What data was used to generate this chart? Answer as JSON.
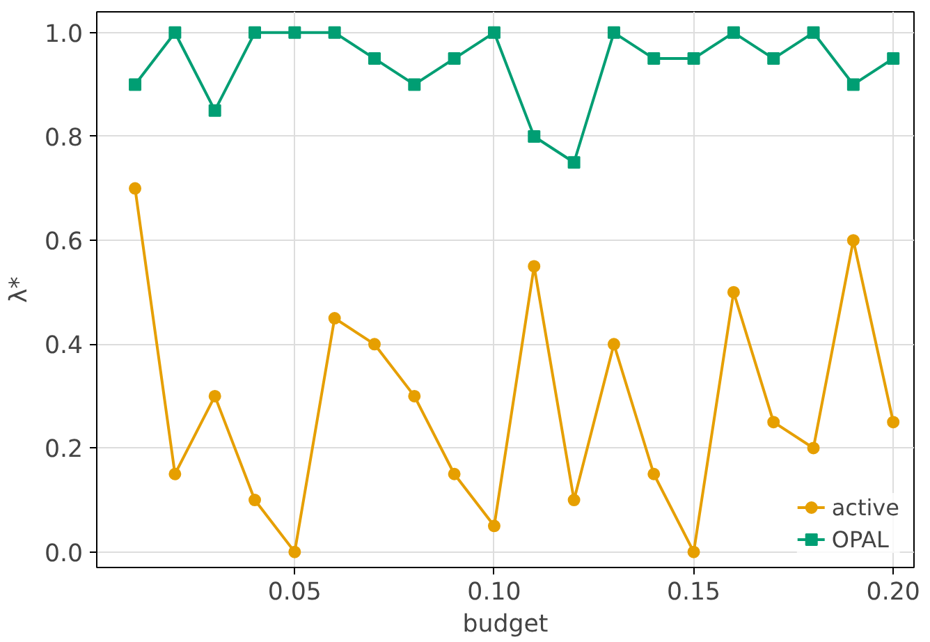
{
  "chart_data": {
    "type": "line",
    "xlabel": "budget",
    "ylabel": "λ*",
    "x": [
      0.01,
      0.02,
      0.03,
      0.04,
      0.05,
      0.06,
      0.07,
      0.08,
      0.09,
      0.1,
      0.11,
      0.12,
      0.13,
      0.14,
      0.15,
      0.16,
      0.17,
      0.18,
      0.19,
      0.2
    ],
    "series": [
      {
        "name": "active",
        "color": "#e69f00",
        "marker": "circle",
        "values": [
          0.7,
          0.15,
          0.3,
          0.1,
          0.0,
          0.45,
          0.4,
          0.3,
          0.15,
          0.05,
          0.55,
          0.1,
          0.4,
          0.15,
          0.0,
          0.5,
          0.25,
          0.2,
          0.6,
          0.25
        ]
      },
      {
        "name": "OPAL",
        "color": "#009e73",
        "marker": "square",
        "values": [
          0.9,
          1.0,
          0.85,
          1.0,
          1.0,
          1.0,
          0.95,
          0.9,
          0.95,
          1.0,
          0.8,
          0.75,
          1.0,
          0.95,
          0.95,
          1.0,
          0.95,
          1.0,
          0.9,
          0.95
        ]
      }
    ],
    "xlim": [
      0.0004,
      0.2052
    ],
    "ylim": [
      -0.03,
      1.04
    ],
    "xticks": [
      {
        "value": 0.05,
        "label": "0.05"
      },
      {
        "value": 0.1,
        "label": "0.10"
      },
      {
        "value": 0.15,
        "label": "0.15"
      },
      {
        "value": 0.2,
        "label": "0.20"
      }
    ],
    "yticks": [
      {
        "value": 0,
        "label": "0.0"
      },
      {
        "value": 0.2,
        "label": "0.2"
      },
      {
        "value": 0.4,
        "label": "0.4"
      },
      {
        "value": 0.6,
        "label": "0.6"
      },
      {
        "value": 0.8,
        "label": "0.8"
      },
      {
        "value": 1.0,
        "label": "1.0"
      }
    ],
    "grid": true,
    "legend": "bottom right",
    "line_style": "solid"
  }
}
